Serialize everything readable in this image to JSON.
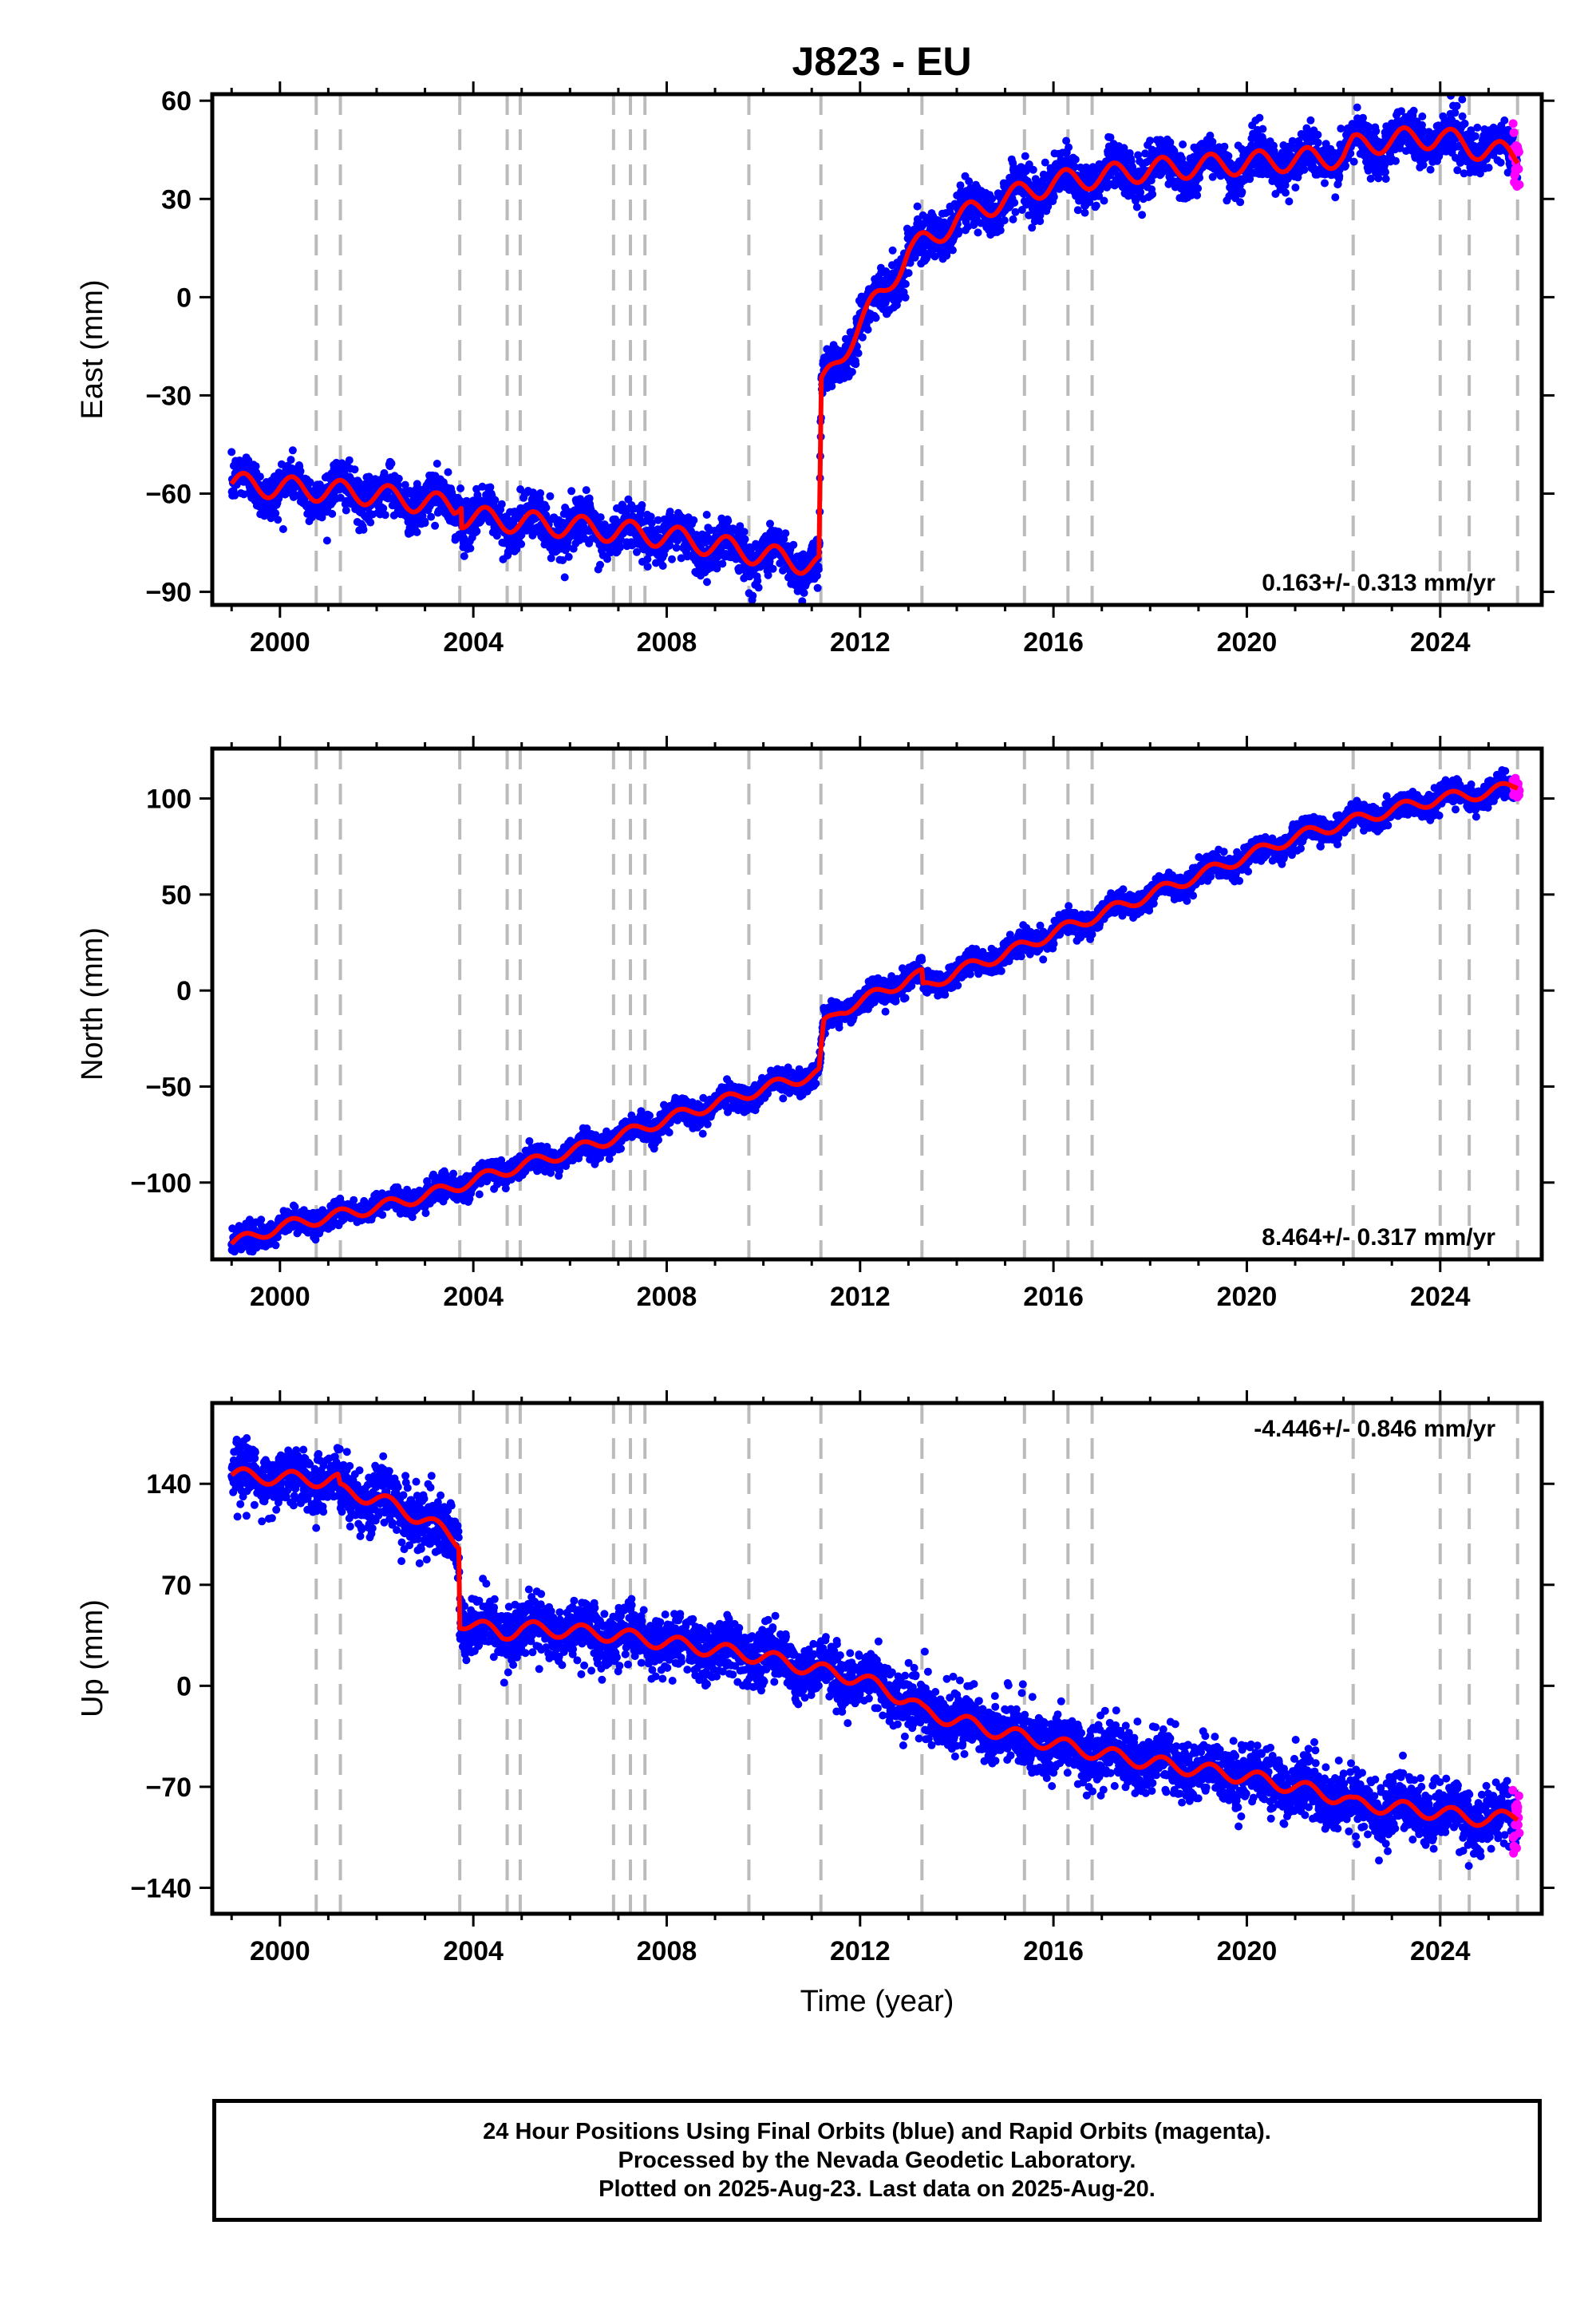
{
  "title": "J823 - EU",
  "xlabel": "Time (year)",
  "footer": {
    "line1": "24 Hour Positions Using Final Orbits (blue) and Rapid Orbits (magenta).",
    "line2": "Processed by the Nevada Geodetic Laboratory.",
    "line3": "Plotted on 2025-Aug-23. Last data on 2025-Aug-20."
  },
  "colors": {
    "final": "#0000ff",
    "rapid": "#ff00ff",
    "model": "#ff0000",
    "breaks": "#bbbbbb"
  },
  "chart_data": [
    {
      "type": "scatter",
      "ylabel": "East (mm)",
      "rate": "0.163+/- 0.313 mm/yr",
      "rate_position": "bottom-right",
      "xlim": [
        1998.6,
        2026.1
      ],
      "ylim": [
        -94,
        62
      ],
      "yticks": [
        60,
        30,
        0,
        -30,
        -60,
        -90
      ],
      "xticks": [
        2000,
        2004,
        2008,
        2012,
        2016,
        2020,
        2024
      ],
      "grid": false,
      "breaks": [
        2000.75,
        2001.25,
        2003.72,
        2004.7,
        2004.97,
        2006.9,
        2007.25,
        2007.55,
        2009.7,
        2011.19,
        2013.28,
        2015.4,
        2016.3,
        2016.8,
        2022.2,
        2024.0,
        2024.6,
        2025.6
      ],
      "model_series": [
        [
          1999.0,
          -57
        ],
        [
          2001.8,
          -60
        ],
        [
          2003.6,
          -64
        ],
        [
          2003.75,
          -61
        ],
        [
          2003.76,
          -67
        ],
        [
          2006.0,
          -70
        ],
        [
          2008.0,
          -73
        ],
        [
          2011.15,
          -82
        ],
        [
          2011.2,
          -28
        ],
        [
          2011.5,
          -20
        ],
        [
          2012.0,
          -8
        ],
        [
          2012.5,
          2
        ],
        [
          2013.0,
          14
        ],
        [
          2013.5,
          18
        ],
        [
          2014.0,
          24
        ],
        [
          2015.0,
          30
        ],
        [
          2016.0,
          35
        ],
        [
          2017.0,
          37
        ],
        [
          2018.0,
          39
        ],
        [
          2019.0,
          40
        ],
        [
          2020.0,
          41
        ],
        [
          2021.0,
          42
        ],
        [
          2022.0,
          43
        ],
        [
          2022.2,
          46
        ],
        [
          2023.0,
          48
        ],
        [
          2024.0,
          49
        ],
        [
          2024.6,
          46
        ],
        [
          2025.6,
          43
        ]
      ],
      "seasonal_amplitude": 3.5,
      "scatter_noise": 3.5,
      "rapid_range": [
        2025.5,
        2025.64
      ]
    },
    {
      "type": "scatter",
      "ylabel": "North (mm)",
      "rate": "8.464+/- 0.317 mm/yr",
      "rate_position": "bottom-right",
      "xlim": [
        1998.6,
        2026.1
      ],
      "ylim": [
        -140,
        126
      ],
      "yticks": [
        100,
        50,
        0,
        -50,
        -100
      ],
      "xticks": [
        2000,
        2004,
        2008,
        2012,
        2016,
        2020,
        2024
      ],
      "grid": false,
      "breaks": [
        2000.75,
        2001.25,
        2003.72,
        2004.7,
        2004.97,
        2006.9,
        2007.25,
        2007.55,
        2009.7,
        2011.19,
        2013.28,
        2015.4,
        2016.3,
        2016.8,
        2022.2,
        2024.0,
        2024.6,
        2025.6
      ],
      "model_series": [
        [
          1999.0,
          -132
        ],
        [
          2000.0,
          -123
        ],
        [
          2001.0,
          -118
        ],
        [
          2002.0,
          -113
        ],
        [
          2003.0,
          -107
        ],
        [
          2004.0,
          -99
        ],
        [
          2005.0,
          -91
        ],
        [
          2006.0,
          -84
        ],
        [
          2007.0,
          -76
        ],
        [
          2008.0,
          -67
        ],
        [
          2009.0,
          -59
        ],
        [
          2010.0,
          -51
        ],
        [
          2011.15,
          -43
        ],
        [
          2011.25,
          -18
        ],
        [
          2011.6,
          -10
        ],
        [
          2012.0,
          -6
        ],
        [
          2013.0,
          6
        ],
        [
          2013.28,
          8
        ],
        [
          2013.3,
          1
        ],
        [
          2014.0,
          10
        ],
        [
          2015.0,
          19
        ],
        [
          2016.0,
          30
        ],
        [
          2017.0,
          40
        ],
        [
          2018.0,
          50
        ],
        [
          2019.0,
          60
        ],
        [
          2020.0,
          70
        ],
        [
          2021.0,
          80
        ],
        [
          2022.0,
          87
        ],
        [
          2023.0,
          94
        ],
        [
          2024.0,
          100
        ],
        [
          2025.0,
          103
        ],
        [
          2025.6,
          107
        ]
      ],
      "seasonal_amplitude": 3,
      "scatter_noise": 3,
      "rapid_range": [
        2025.5,
        2025.64
      ]
    },
    {
      "type": "scatter",
      "ylabel": "Up (mm)",
      "rate": "-4.446+/- 0.846 mm/yr",
      "rate_position": "top-right",
      "xlim": [
        1998.6,
        2026.1
      ],
      "ylim": [
        -158,
        196
      ],
      "yticks": [
        140,
        70,
        0,
        -70,
        -140
      ],
      "xticks": [
        2000,
        2004,
        2008,
        2012,
        2016,
        2020,
        2024
      ],
      "grid": false,
      "breaks": [
        2000.75,
        2001.25,
        2003.72,
        2004.7,
        2004.97,
        2006.9,
        2007.25,
        2007.55,
        2009.7,
        2011.19,
        2013.28,
        2015.4,
        2016.3,
        2016.8,
        2022.2,
        2024.0,
        2024.6,
        2025.6
      ],
      "model_series": [
        [
          1999.0,
          146
        ],
        [
          2001.2,
          142
        ],
        [
          2001.25,
          135
        ],
        [
          2002.0,
          130
        ],
        [
          2003.0,
          115
        ],
        [
          2003.7,
          100
        ],
        [
          2003.72,
          45
        ],
        [
          2004.6,
          36
        ],
        [
          2005.0,
          40
        ],
        [
          2006.0,
          38
        ],
        [
          2007.0,
          35
        ],
        [
          2008.0,
          30
        ],
        [
          2009.0,
          25
        ],
        [
          2010.0,
          20
        ],
        [
          2011.0,
          12
        ],
        [
          2012.0,
          5
        ],
        [
          2013.0,
          -10
        ],
        [
          2013.3,
          -18
        ],
        [
          2014.0,
          -24
        ],
        [
          2015.0,
          -33
        ],
        [
          2016.0,
          -40
        ],
        [
          2017.0,
          -47
        ],
        [
          2018.0,
          -53
        ],
        [
          2019.0,
          -58
        ],
        [
          2020.0,
          -63
        ],
        [
          2021.0,
          -70
        ],
        [
          2022.0,
          -78
        ],
        [
          2022.2,
          -82
        ],
        [
          2023.0,
          -84
        ],
        [
          2024.0,
          -88
        ],
        [
          2025.0,
          -93
        ],
        [
          2025.6,
          -90
        ]
      ],
      "seasonal_amplitude": 5,
      "scatter_noise": 10,
      "rapid_range": [
        2025.5,
        2025.64
      ]
    }
  ]
}
